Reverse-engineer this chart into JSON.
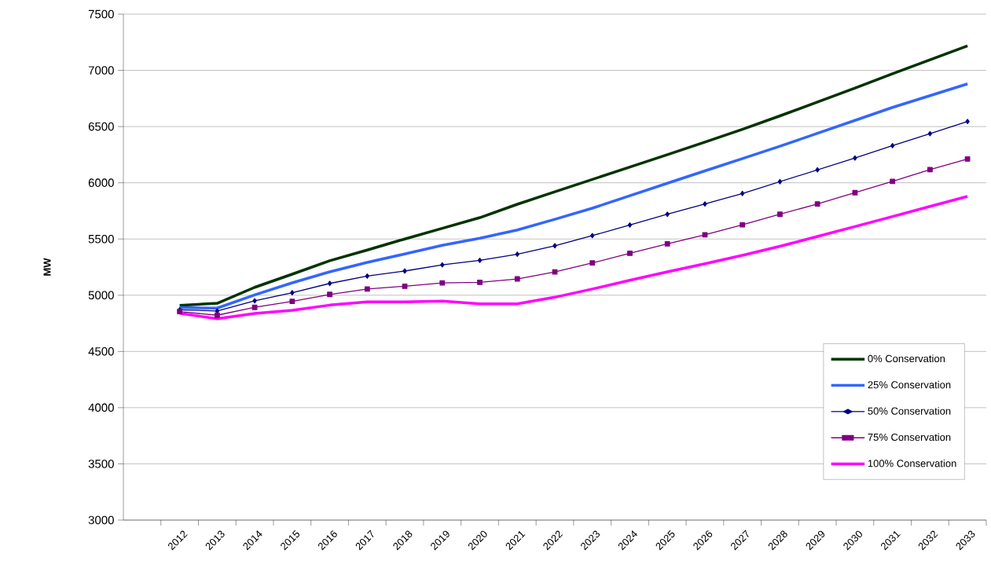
{
  "chart_data": {
    "type": "line",
    "ylabel": "MW",
    "categories": [
      null,
      "2012",
      "2013",
      "2014",
      "2015",
      "2016",
      "2017",
      "2018",
      "2019",
      "2020",
      "2021",
      "2022",
      "2023",
      "2024",
      "2025",
      "2026",
      "2027",
      "2028",
      "2029",
      "2030",
      "2031",
      "2032",
      "2033"
    ],
    "ylim": [
      3000,
      7500
    ],
    "yticks": [
      3000,
      3500,
      4000,
      4500,
      5000,
      5500,
      6000,
      6500,
      7000,
      7500
    ],
    "grid": "y",
    "legend": "bottom right",
    "series": [
      {
        "name": "0% Conservation",
        "color": "#003300",
        "marker": "none",
        "values": [
          null,
          4910,
          4928,
          5070,
          5187,
          5307,
          5402,
          5500,
          5595,
          5690,
          5809,
          5920,
          6030,
          6140,
          6250,
          6362,
          6475,
          6595,
          6718,
          6842,
          6969,
          7094,
          7218
        ]
      },
      {
        "name": "25% Conservation",
        "color": "#3366ff",
        "marker": "none",
        "values": [
          null,
          4890,
          4885,
          5003,
          5110,
          5208,
          5292,
          5367,
          5444,
          5507,
          5580,
          5675,
          5774,
          5885,
          5996,
          6106,
          6215,
          6325,
          6440,
          6555,
          6670,
          6775,
          6880
        ]
      },
      {
        "name": "50% Conservation",
        "color": "#000080",
        "marker": "diamond",
        "values": [
          null,
          4870,
          4860,
          4950,
          5022,
          5105,
          5170,
          5215,
          5270,
          5310,
          5365,
          5440,
          5530,
          5625,
          5720,
          5812,
          5905,
          6010,
          6115,
          6220,
          6330,
          6437,
          6545
        ]
      },
      {
        "name": "75% Conservation",
        "color": "#800080",
        "marker": "square",
        "values": [
          null,
          4855,
          4822,
          4892,
          4945,
          5007,
          5055,
          5080,
          5110,
          5115,
          5145,
          5207,
          5287,
          5373,
          5457,
          5538,
          5627,
          5720,
          5812,
          5912,
          6012,
          6117,
          6212
        ]
      },
      {
        "name": "100% Conservation",
        "color": "#ff00ff",
        "marker": "none",
        "values": [
          null,
          4840,
          4790,
          4838,
          4865,
          4912,
          4940,
          4940,
          4947,
          4923,
          4923,
          4982,
          5055,
          5133,
          5208,
          5280,
          5355,
          5435,
          5522,
          5611,
          5700,
          5790,
          5879
        ]
      }
    ]
  }
}
